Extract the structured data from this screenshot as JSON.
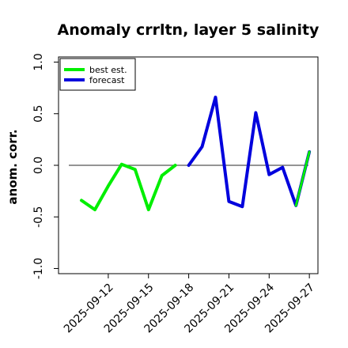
{
  "chart_data": {
    "type": "line",
    "title": "Anomaly crrltn, layer 5 salinity",
    "ylabel": "anom. corr.",
    "xlabel": "",
    "ylim": [
      -1.05,
      1.05
    ],
    "yticks": [
      -1.0,
      -0.5,
      0.0,
      0.5,
      1.0
    ],
    "ytick_labels": [
      "-1.0",
      "-0.5",
      "0.0",
      "0.5",
      "1.0"
    ],
    "x_dates": [
      "2025-09-10",
      "2025-09-11",
      "2025-09-12",
      "2025-09-13",
      "2025-09-14",
      "2025-09-15",
      "2025-09-16",
      "2025-09-17",
      "2025-09-18",
      "2025-09-19",
      "2025-09-20",
      "2025-09-21",
      "2025-09-22",
      "2025-09-23",
      "2025-09-24",
      "2025-09-25",
      "2025-09-26",
      "2025-09-27"
    ],
    "xticks": [
      "2025-09-12",
      "2025-09-15",
      "2025-09-18",
      "2025-09-21",
      "2025-09-24",
      "2025-09-27"
    ],
    "xtick_labels": [
      "2025-09-12",
      "2025-09-15",
      "2025-09-18",
      "2025-09-21",
      "2025-09-24",
      "2025-09-27"
    ],
    "highlight_tick": "2025-09-18",
    "reference_line": 0.0,
    "grid": false,
    "legend_position": "upper-left",
    "series": [
      {
        "name": "best est.",
        "color": "#00ee00",
        "x": [
          "2025-09-10",
          "2025-09-11",
          "2025-09-12",
          "2025-09-13",
          "2025-09-14",
          "2025-09-15",
          "2025-09-16",
          "2025-09-17",
          "2025-09-18"
        ],
        "values": [
          -0.34,
          -0.43,
          -0.2,
          0.01,
          -0.04,
          -0.43,
          -0.1,
          0.0,
          null
        ]
      },
      {
        "name": "forecast",
        "color": "#0000dd",
        "x": [
          "2025-09-18",
          "2025-09-19",
          "2025-09-20",
          "2025-09-21",
          "2025-09-22",
          "2025-09-23",
          "2025-09-24",
          "2025-09-25",
          "2025-09-26",
          "2025-09-27"
        ],
        "values": [
          0.0,
          0.18,
          0.66,
          -0.35,
          -0.4,
          0.51,
          -0.09,
          -0.02,
          -0.39,
          0.13
        ]
      },
      {
        "name": "",
        "color": "#00ee00",
        "x": [
          "2025-09-26",
          "2025-09-27"
        ],
        "values": [
          -0.39,
          0.13
        ]
      }
    ],
    "tick_label_colors": {
      "default": "#000000",
      "highlight": "#228b22"
    }
  }
}
